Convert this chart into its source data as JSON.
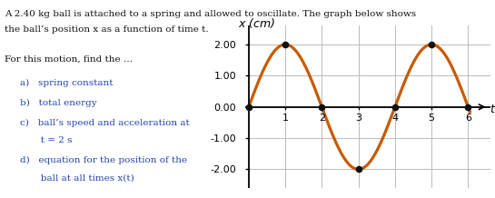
{
  "amplitude": 2.0,
  "period": 4.0,
  "t_start": 0,
  "t_end": 6.05,
  "ylim": [
    -2.6,
    2.6
  ],
  "xlim": [
    -0.1,
    6.6
  ],
  "yticks": [
    -2.0,
    -1.0,
    0.0,
    1.0,
    2.0
  ],
  "ytick_labels": [
    "-2.00",
    "-1.00",
    "0.00",
    "1.00",
    "2.00"
  ],
  "xticks": [
    1,
    2,
    3,
    4,
    5,
    6
  ],
  "curve_color": "#C85A00",
  "curve_linewidth": 2.3,
  "dot_color": "#111111",
  "dot_size": 4.5,
  "key_points_t": [
    0,
    1,
    2,
    3,
    4,
    5,
    6
  ],
  "key_points_x": [
    0,
    2,
    0,
    -2,
    0,
    2,
    0
  ],
  "grid_color": "#bbbbbb",
  "background_color": "#ffffff",
  "axis_label_fontsize": 9,
  "tick_fontsize": 8,
  "text_color_blue": "#2244aa",
  "text_color_black": "#111111",
  "header_text1": "A 2.40 kg ball is attached to a spring and allowed to oscillate. The graph below shows",
  "header_text2": "the ball’s position x as a function of time t.",
  "sub_header": "For this motion, find the …",
  "item_a": "a)   spring constant",
  "item_b": "b)   total energy",
  "item_c1": "c)   ball’s speed and acceleration at",
  "item_c2": "       t = 2 s",
  "item_d1": "d)   equation for the position of the",
  "item_d2": "       ball at all times x(t)"
}
